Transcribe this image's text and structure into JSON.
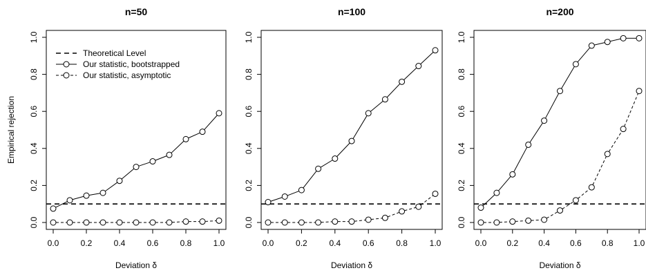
{
  "chart_data": [
    {
      "type": "line",
      "title": "n=50",
      "xlabel": "Deviation δ",
      "ylabel": "Empirical rejection",
      "xlim": [
        0,
        1
      ],
      "ylim": [
        0,
        1
      ],
      "xticks": [
        "0.0",
        "0.2",
        "0.4",
        "0.6",
        "0.8",
        "1.0"
      ],
      "yticks": [
        "0.0",
        "0.2",
        "0.4",
        "0.6",
        "0.8",
        "1.0"
      ],
      "x": [
        0.0,
        0.1,
        0.2,
        0.3,
        0.4,
        0.5,
        0.6,
        0.7,
        0.8,
        0.9,
        1.0
      ],
      "theoretical_level": 0.1,
      "grid": false,
      "legend": {
        "position": "top-left",
        "entries": [
          "Theoretical Level",
          "Our statistic,  bootstrapped",
          "Our statistic,  asymptotic"
        ]
      },
      "series": [
        {
          "name": "Our statistic,  bootstrapped",
          "style": "solid",
          "values": [
            0.075,
            0.12,
            0.145,
            0.16,
            0.225,
            0.3,
            0.33,
            0.365,
            0.45,
            0.49,
            0.59
          ]
        },
        {
          "name": "Our statistic,  asymptotic",
          "style": "dashed",
          "values": [
            0.0,
            0.0,
            0.0,
            0.0,
            0.0,
            0.0,
            0.0,
            0.0,
            0.005,
            0.005,
            0.01
          ]
        }
      ]
    },
    {
      "type": "line",
      "title": "n=100",
      "xlabel": "Deviation δ",
      "ylabel": "",
      "xlim": [
        0,
        1
      ],
      "ylim": [
        0,
        1
      ],
      "xticks": [
        "0.0",
        "0.2",
        "0.4",
        "0.6",
        "0.8",
        "1.0"
      ],
      "yticks": [
        "0.0",
        "0.2",
        "0.4",
        "0.6",
        "0.8",
        "1.0"
      ],
      "x": [
        0.0,
        0.1,
        0.2,
        0.3,
        0.4,
        0.5,
        0.6,
        0.7,
        0.8,
        0.9,
        1.0
      ],
      "theoretical_level": 0.1,
      "grid": false,
      "series": [
        {
          "name": "Our statistic,  bootstrapped",
          "style": "solid",
          "values": [
            0.11,
            0.14,
            0.175,
            0.29,
            0.345,
            0.44,
            0.59,
            0.665,
            0.76,
            0.845,
            0.93
          ]
        },
        {
          "name": "Our statistic,  asymptotic",
          "style": "dashed",
          "values": [
            0.0,
            0.0,
            0.0,
            0.0,
            0.005,
            0.005,
            0.015,
            0.025,
            0.06,
            0.085,
            0.155
          ]
        }
      ]
    },
    {
      "type": "line",
      "title": "n=200",
      "xlabel": "Deviation δ",
      "ylabel": "",
      "xlim": [
        0,
        1
      ],
      "ylim": [
        0,
        1
      ],
      "xticks": [
        "0.0",
        "0.2",
        "0.4",
        "0.6",
        "0.8",
        "1.0"
      ],
      "yticks": [
        "0.0",
        "0.2",
        "0.4",
        "0.6",
        "0.8",
        "1.0"
      ],
      "x": [
        0.0,
        0.1,
        0.2,
        0.3,
        0.4,
        0.5,
        0.6,
        0.7,
        0.8,
        0.9,
        1.0
      ],
      "theoretical_level": 0.1,
      "grid": false,
      "series": [
        {
          "name": "Our statistic,  bootstrapped",
          "style": "solid",
          "values": [
            0.08,
            0.16,
            0.26,
            0.42,
            0.55,
            0.71,
            0.855,
            0.955,
            0.975,
            0.995,
            0.995
          ]
        },
        {
          "name": "Our statistic,  asymptotic",
          "style": "dashed",
          "values": [
            0.0,
            0.0,
            0.005,
            0.01,
            0.015,
            0.065,
            0.12,
            0.19,
            0.37,
            0.505,
            0.71
          ]
        }
      ]
    }
  ]
}
